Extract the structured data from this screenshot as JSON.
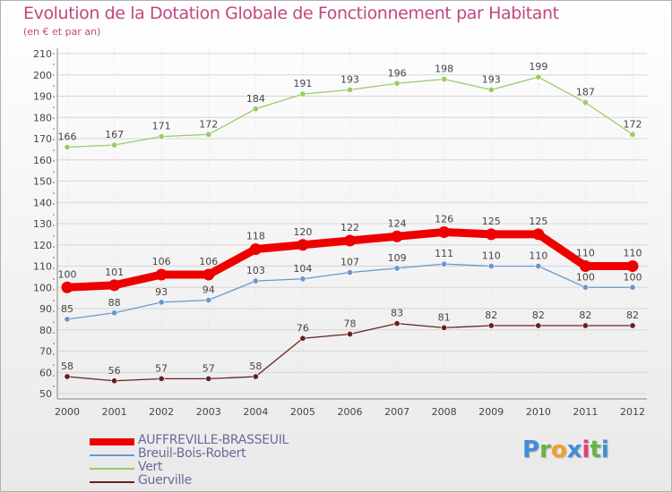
{
  "header": {
    "title": "Evolution de la Dotation Globale de Fonctionnement par Habitant",
    "subtitle": "(en € et par an)"
  },
  "logo": {
    "letters": [
      "P",
      "r",
      "o",
      "x",
      "i",
      "t",
      "i"
    ],
    "colors": [
      "#3f8fd8",
      "#66b544",
      "#f0a030",
      "#3f8fd8",
      "#e0407a",
      "#66b544",
      "#3f8fd8"
    ]
  },
  "chart_data": {
    "type": "line",
    "title": "Evolution de la Dotation Globale de Fonctionnement par Habitant",
    "subtitle": "(en € et par an)",
    "xlabel": "",
    "ylabel": "",
    "x": [
      "2000",
      "2001",
      "2002",
      "2003",
      "2004",
      "2005",
      "2006",
      "2007",
      "2008",
      "2009",
      "2010",
      "2011",
      "2012"
    ],
    "ylim": [
      50,
      210
    ],
    "yticks": [
      50,
      60,
      70,
      80,
      90,
      100,
      110,
      120,
      130,
      140,
      150,
      160,
      170,
      180,
      190,
      200,
      210
    ],
    "legend_position": "bottom-left",
    "series": [
      {
        "name": "AUFFREVILLE-BRASSEUIL",
        "color": "#ee0000",
        "emphasis": true,
        "values": [
          100,
          101,
          106,
          106,
          118,
          120,
          122,
          124,
          126,
          125,
          125,
          110,
          110
        ]
      },
      {
        "name": "Breuil-Bois-Robert",
        "color": "#6699cc",
        "emphasis": false,
        "values": [
          85,
          88,
          93,
          94,
          103,
          104,
          107,
          109,
          111,
          110,
          110,
          100,
          100
        ]
      },
      {
        "name": "Vert",
        "color": "#99cc66",
        "emphasis": false,
        "values": [
          166,
          167,
          171,
          172,
          184,
          191,
          193,
          196,
          198,
          193,
          199,
          187,
          172
        ]
      },
      {
        "name": "Guerville",
        "color": "#662222",
        "emphasis": false,
        "values": [
          58,
          56,
          57,
          57,
          58,
          76,
          78,
          83,
          81,
          82,
          82,
          82,
          82
        ]
      }
    ]
  }
}
